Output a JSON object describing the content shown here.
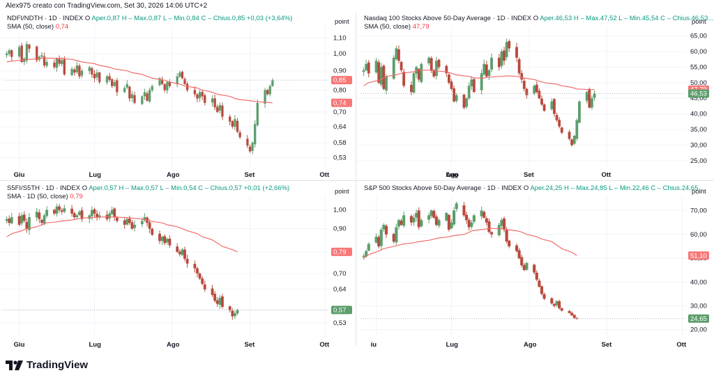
{
  "header": {
    "creator_text": "Alex975 creato con TradingView.com, Set 30, 2026 14:06 UTC+2"
  },
  "brand": {
    "name": "TradingView",
    "logo_icon": "tradingview-logo-icon"
  },
  "colors": {
    "up": "#5c9e6c",
    "down": "#b84a3c",
    "sma": "#f26b6b",
    "grid": "#f0f3fa",
    "sma_label_bg": "#f77777",
    "last_label_up": "#5c9e6c",
    "last_label_down": "#f77777"
  },
  "panels": [
    {
      "id": "p1",
      "title": "NDFI/NDTH · 1D · INDEX",
      "ohlc": {
        "o_label": "O",
        "o": "Aper.0,87",
        "h": "H – Max.0,87",
        "l": "L – Min.0,84",
        "c": "C – Chius.0,85",
        "chg": "+0,03 (+3,64%)"
      },
      "sma_label": "SMA (50, close)",
      "sma_value": "0,74",
      "axis_unit": "point",
      "y_ticks": [
        "1,10",
        "1,00",
        "0,90",
        "0,80",
        "0,70",
        "0,64",
        "0,58",
        "0,53"
      ],
      "x_ticks": [
        "Giu",
        "Lug",
        "Ago",
        "Set",
        "Ott"
      ],
      "last_label": "0,85",
      "sma_last_label": "0,74",
      "chart_data": {
        "type": "candlestick",
        "y_scale": "log",
        "ylim": [
          0.5,
          1.18
        ],
        "x_range": [
          "2026-05-26",
          "2026-10-02"
        ],
        "start": "2026-05-27",
        "closes": [
          1.0,
          1.02,
          0.98,
          1.04,
          0.95,
          0.97,
          1.06,
          1.03,
          0.96,
          0.98,
          0.99,
          0.93,
          0.95,
          0.92,
          0.97,
          0.94,
          0.96,
          0.88,
          0.91,
          0.89,
          0.93,
          0.87,
          0.9,
          0.92,
          0.88,
          0.86,
          0.89,
          0.84,
          0.87,
          0.85,
          0.82,
          0.84,
          0.79,
          0.81,
          0.83,
          0.76,
          0.78,
          0.74,
          0.77,
          0.79,
          0.75,
          0.8,
          0.82,
          0.86,
          0.83,
          0.8,
          0.84,
          0.82,
          0.87,
          0.89,
          0.86,
          0.83,
          0.8,
          0.78,
          0.76,
          0.79,
          0.77,
          0.74,
          0.76,
          0.72,
          0.7,
          0.73,
          0.68,
          0.66,
          0.64,
          0.67,
          0.62,
          0.6,
          0.57,
          0.55,
          0.58,
          0.65,
          0.74,
          0.8,
          0.78,
          0.82,
          0.85
        ],
        "sma": [
          0.95,
          0.955,
          0.96,
          0.965,
          0.97,
          0.972,
          0.972,
          0.97,
          0.965,
          0.958,
          0.95,
          0.94,
          0.93,
          0.92,
          0.91,
          0.9,
          0.89,
          0.88,
          0.87,
          0.86,
          0.85,
          0.84,
          0.83,
          0.82,
          0.81,
          0.8,
          0.79,
          0.78,
          0.77,
          0.76,
          0.755,
          0.75,
          0.745,
          0.742,
          0.74
        ]
      }
    },
    {
      "id": "p2",
      "title": "Nasdaq 100 Stocks Above 50-Day Average · 1D · INDEX",
      "ohlc": {
        "o_label": "O",
        "o": "Aper.46,53",
        "h": "H – Max.47,52",
        "l": "L – Min.45,54",
        "c": "C – Chius.46,53...",
        "chg": ""
      },
      "sma_label": "SMA (50, close)",
      "sma_value": "47,79",
      "axis_unit": "point",
      "y_ticks": [
        "65,00",
        "60,00",
        "55,00",
        "50,00",
        "45,00",
        "40,00",
        "35,00",
        "30,00",
        "25,00"
      ],
      "x_ticks": [
        "Lug",
        "Ago",
        "Set",
        "Ott"
      ],
      "last_label": "46,53",
      "sma_last_label": "47,79",
      "chart_data": {
        "type": "candlestick",
        "y_scale": "linear",
        "ylim": [
          23,
          68
        ],
        "x_range": [
          "2026-05-26",
          "2026-10-02"
        ],
        "start": "2026-05-27",
        "closes": [
          54,
          56,
          53,
          57,
          50,
          55,
          48,
          52,
          58,
          61,
          57,
          54,
          49,
          47,
          53,
          55,
          51,
          56,
          58,
          54,
          52,
          57,
          55,
          53,
          50,
          48,
          44,
          46,
          42,
          45,
          49,
          51,
          47,
          53,
          56,
          52,
          54,
          58,
          55,
          60,
          57,
          63,
          61,
          58,
          53,
          51,
          48,
          46,
          49,
          47,
          45,
          43,
          41,
          44,
          40,
          38,
          36,
          34,
          32,
          30,
          33,
          38,
          44,
          47,
          42,
          45,
          46.5
        ],
        "sma": [
          49,
          50,
          51,
          52,
          52.5,
          53,
          53.5,
          54,
          54,
          53.8,
          53.5,
          53,
          52.5,
          52,
          51.5,
          51.5,
          51.8,
          52,
          52.2,
          52,
          51.5,
          51,
          50.5,
          50,
          49.5,
          49,
          48.5,
          48,
          47.8,
          47.79
        ]
      }
    },
    {
      "id": "p3",
      "title": "S5FI/S5TH · 1D · INDEX",
      "ohlc": {
        "o_label": "O",
        "o": "Aper.0,57",
        "h": "H – Max.0,57",
        "l": "L – Min.0,54",
        "c": "C – Chius.0,57",
        "chg": "+0,01 (+2,66%)"
      },
      "sma_label": "SMA · 1D (50, close)",
      "sma_value": "0,79",
      "axis_unit": "point",
      "y_ticks": [
        "1,00",
        "0,90",
        "0,79",
        "0,70",
        "0,64",
        "0,57",
        "0,53"
      ],
      "x_ticks": [
        "Giu",
        "Lug",
        "Ago",
        "Set",
        "Ott"
      ],
      "last_label": "0,57",
      "sma_last_label": "0,79",
      "chart_data": {
        "type": "candlestick",
        "y_scale": "log",
        "ylim": [
          0.49,
          1.08
        ],
        "x_range": [
          "2026-05-26",
          "2026-10-02"
        ],
        "start": "2026-05-27",
        "closes": [
          0.95,
          0.93,
          0.96,
          0.92,
          0.97,
          0.94,
          0.9,
          0.96,
          0.99,
          0.95,
          0.93,
          0.97,
          1.0,
          0.98,
          1.02,
          1.0,
          0.99,
          1.01,
          0.98,
          0.96,
          0.97,
          0.99,
          0.95,
          0.97,
          1.0,
          0.98,
          0.96,
          0.97,
          0.95,
          0.98,
          1.0,
          0.96,
          0.94,
          0.92,
          0.95,
          0.93,
          0.9,
          0.92,
          0.94,
          0.96,
          0.93,
          0.9,
          0.87,
          0.84,
          0.86,
          0.83,
          0.85,
          0.82,
          0.79,
          0.78,
          0.8,
          0.76,
          0.74,
          0.72,
          0.7,
          0.68,
          0.66,
          0.64,
          0.62,
          0.6,
          0.59,
          0.61,
          0.58,
          0.57,
          0.55,
          0.56,
          0.57
        ],
        "sma": [
          0.86,
          0.875,
          0.89,
          0.9,
          0.91,
          0.92,
          0.93,
          0.935,
          0.94,
          0.945,
          0.95,
          0.955,
          0.958,
          0.96,
          0.962,
          0.962,
          0.96,
          0.958,
          0.955,
          0.95,
          0.944,
          0.937,
          0.93,
          0.92,
          0.91,
          0.9,
          0.89,
          0.875,
          0.86,
          0.845,
          0.83,
          0.815,
          0.8,
          0.79
        ]
      }
    },
    {
      "id": "p4",
      "title": "S&P 500 Stocks Above 50-Day Average · 1D · INDEX",
      "ohlc": {
        "o_label": "O",
        "o": "Aper.24,25",
        "h": "H – Max.24,85",
        "l": "L – Min.22,46",
        "c": "C – Chius.24,65...",
        "chg": ""
      },
      "sma_label": "",
      "sma_value": "",
      "axis_unit": "point",
      "y_ticks": [
        "70,00",
        "60,00",
        "50,00",
        "40,00",
        "30,00",
        "20,00"
      ],
      "x_ticks": [
        "iu",
        "Lug",
        "Ago",
        "Set",
        "Ott"
      ],
      "last_label": "24,65",
      "sma_last_label": "51,10",
      "chart_data": {
        "type": "candlestick",
        "y_scale": "linear",
        "ylim": [
          17,
          76
        ],
        "x_range": [
          "2026-05-26",
          "2026-10-02"
        ],
        "start": "2026-05-27",
        "closes": [
          51,
          53,
          56,
          59,
          55,
          62,
          64,
          60,
          57,
          63,
          66,
          64,
          68,
          65,
          67,
          69,
          63,
          66,
          68,
          70,
          67,
          64,
          66,
          69,
          62,
          65,
          70,
          73,
          68,
          66,
          63,
          65,
          68,
          70,
          67,
          65,
          61,
          60,
          64,
          66,
          62,
          57,
          55,
          53,
          50,
          47,
          45,
          48,
          44,
          41,
          38,
          35,
          33,
          31,
          30,
          32,
          29,
          28,
          27,
          26,
          25,
          24.65
        ],
        "sma": [
          50,
          51.5,
          53,
          54,
          55,
          55.5,
          56,
          56.5,
          57,
          57.5,
          58,
          58.5,
          59,
          59.5,
          60,
          60.8,
          61.5,
          62,
          62.3,
          62.5,
          62.3,
          62,
          61.5,
          61,
          60,
          59,
          58,
          57,
          55.5,
          54,
          52.5,
          51.1
        ]
      }
    }
  ]
}
